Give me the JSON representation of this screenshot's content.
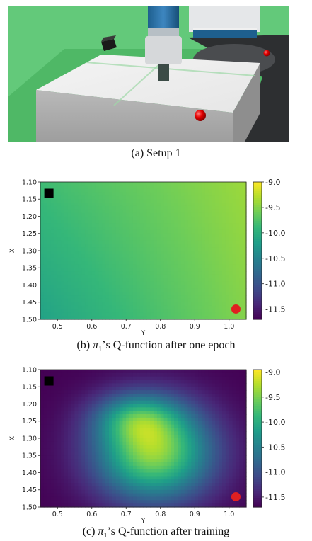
{
  "setup": {
    "caption": "(a) Setup 1"
  },
  "panels": [
    {
      "caption_prefix": "(b) ",
      "caption_symbol": "π",
      "caption_sub": "1",
      "caption_rest": "’s Q-function after one epoch"
    },
    {
      "caption_prefix": "(c) ",
      "caption_symbol": "π",
      "caption_sub": "1",
      "caption_rest": "’s Q-function after training"
    }
  ],
  "chart_data": [
    {
      "type": "heatmap",
      "xlabel": "Y",
      "ylabel": "X",
      "xlim": [
        0.45,
        1.05
      ],
      "ylim": [
        1.1,
        1.5
      ],
      "x_ticks": [
        "0.5",
        "0.6",
        "0.7",
        "0.8",
        "0.9",
        "1.0"
      ],
      "x_tick_values": [
        0.5,
        0.6,
        0.7,
        0.8,
        0.9,
        1.0
      ],
      "y_ticks": [
        "1.10",
        "1.15",
        "1.20",
        "1.25",
        "1.30",
        "1.35",
        "1.40",
        "1.45",
        "1.50"
      ],
      "y_tick_values": [
        1.1,
        1.15,
        1.2,
        1.25,
        1.3,
        1.35,
        1.4,
        1.45,
        1.5
      ],
      "colorbar": {
        "min": -11.7,
        "max": -9.0,
        "tick_values": [
          -9.0,
          -9.5,
          -10.0,
          -10.5,
          -11.0,
          -11.5
        ],
        "tick_labels": [
          "-9.0",
          "-9.5",
          "-10.0",
          "-10.5",
          "-11.0",
          "-11.5"
        ],
        "colormap": "viridis"
      },
      "description_values": {
        "corner_top_left": -9.85,
        "corner_bottom_left": -10.15,
        "corner_top_right": -9.4,
        "corner_bottom_right": -9.5
      },
      "markers": [
        {
          "shape": "square",
          "color": "#000000",
          "x": 0.475,
          "y": 1.133
        },
        {
          "shape": "circle",
          "color": "#e02020",
          "x": 1.02,
          "y": 1.47
        }
      ]
    },
    {
      "type": "heatmap",
      "xlabel": "Y",
      "ylabel": "X",
      "xlim": [
        0.45,
        1.05
      ],
      "ylim": [
        1.1,
        1.5
      ],
      "x_ticks": [
        "0.5",
        "0.6",
        "0.7",
        "0.8",
        "0.9",
        "1.0"
      ],
      "x_tick_values": [
        0.5,
        0.6,
        0.7,
        0.8,
        0.9,
        1.0
      ],
      "y_ticks": [
        "1.10",
        "1.15",
        "1.20",
        "1.25",
        "1.30",
        "1.35",
        "1.40",
        "1.45",
        "1.50"
      ],
      "y_tick_values": [
        1.1,
        1.15,
        1.2,
        1.25,
        1.3,
        1.35,
        1.4,
        1.45,
        1.5
      ],
      "colorbar": {
        "min": -11.7,
        "max": -8.95,
        "tick_values": [
          -9.0,
          -9.5,
          -10.0,
          -10.5,
          -11.0,
          -11.5
        ],
        "tick_labels": [
          "-9.0",
          "-9.5",
          "-10.0",
          "-10.5",
          "-11.0",
          "-11.5"
        ],
        "colormap": "viridis"
      },
      "peak": {
        "x": 0.78,
        "y": 1.34,
        "value": -9.0
      },
      "markers": [
        {
          "shape": "square",
          "color": "#000000",
          "x": 0.475,
          "y": 1.133
        },
        {
          "shape": "circle",
          "color": "#e02020",
          "x": 1.02,
          "y": 1.47
        }
      ]
    }
  ]
}
